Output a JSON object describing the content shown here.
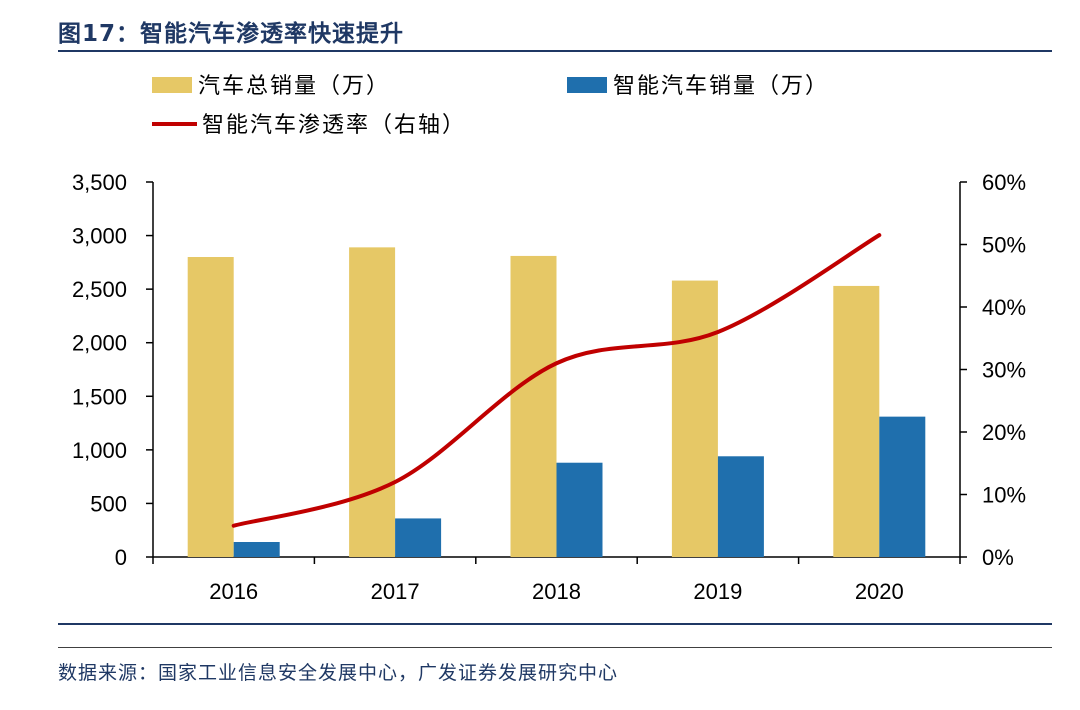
{
  "figure": {
    "title": "图17：智能汽车渗透率快速提升",
    "source": "数据来源：国家工业信息安全发展中心，广发证券发展研究中心"
  },
  "colors": {
    "total_bar": "#e6c866",
    "smart_bar": "#1f6fad",
    "penetration_line": "#c00000",
    "title": "#1f3864"
  },
  "chart_data": {
    "type": "bar",
    "categories": [
      "2016",
      "2017",
      "2018",
      "2019",
      "2020"
    ],
    "series": [
      {
        "name": "汽车总销量（万）",
        "kind": "bar",
        "axis": "left",
        "values": [
          2800,
          2890,
          2810,
          2580,
          2530
        ]
      },
      {
        "name": "智能汽车销量（万）",
        "kind": "bar",
        "axis": "left",
        "values": [
          140,
          360,
          880,
          940,
          1310
        ]
      },
      {
        "name": "智能汽车渗透率（右轴）",
        "kind": "line",
        "axis": "right",
        "values": [
          5.0,
          12.0,
          31.0,
          36.0,
          51.5
        ]
      }
    ],
    "y_left": {
      "min": 0,
      "max": 3500,
      "ticks": [
        "0",
        "500",
        "1,000",
        "1,500",
        "2,000",
        "2,500",
        "3,000",
        "3,500"
      ]
    },
    "y_right": {
      "min": 0,
      "max": 60,
      "ticks": [
        "0%",
        "10%",
        "20%",
        "30%",
        "40%",
        "50%",
        "60%"
      ]
    },
    "legend": [
      {
        "label": "汽车总销量（万）",
        "marker": "bar",
        "color": "#e6c866"
      },
      {
        "label": "智能汽车销量（万）",
        "marker": "bar",
        "color": "#1f6fad"
      },
      {
        "label": "智能汽车渗透率（右轴）",
        "marker": "line",
        "color": "#c00000"
      }
    ]
  }
}
